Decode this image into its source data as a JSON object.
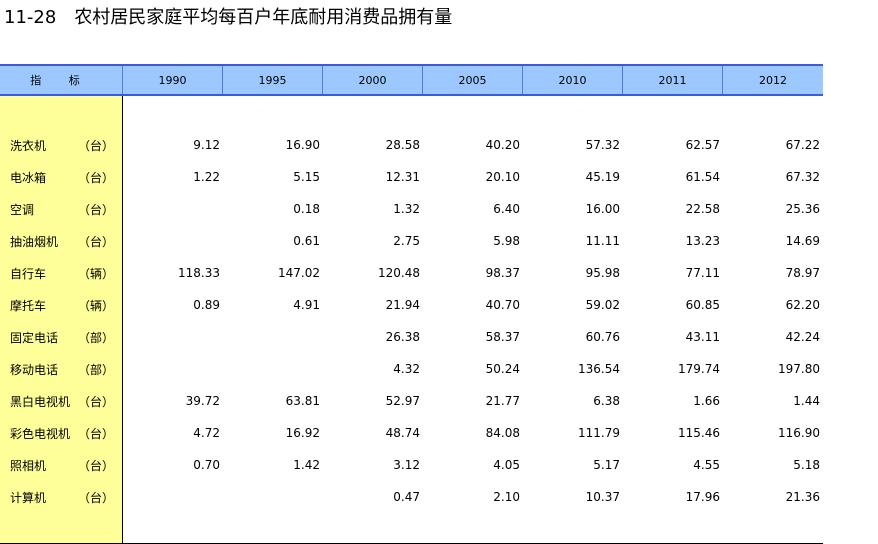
{
  "title": {
    "number": "11-28",
    "text": "农村居民家庭平均每百户年底耐用消费品拥有量"
  },
  "header": {
    "indicator": "指 标",
    "years": [
      "1990",
      "1995",
      "2000",
      "2005",
      "2010",
      "2011",
      "2012"
    ]
  },
  "rows": [
    {
      "name": "洗衣机",
      "unit": "（台）",
      "values": [
        "9.12",
        "16.90",
        "28.58",
        "40.20",
        "57.32",
        "62.57",
        "67.22"
      ]
    },
    {
      "name": "电冰箱",
      "unit": "（台）",
      "values": [
        "1.22",
        "5.15",
        "12.31",
        "20.10",
        "45.19",
        "61.54",
        "67.32"
      ]
    },
    {
      "name": "空调",
      "unit": "（台）",
      "values": [
        "",
        "0.18",
        "1.32",
        "6.40",
        "16.00",
        "22.58",
        "25.36"
      ]
    },
    {
      "name": "抽油烟机",
      "unit": "（台）",
      "values": [
        "",
        "0.61",
        "2.75",
        "5.98",
        "11.11",
        "13.23",
        "14.69"
      ]
    },
    {
      "name": "自行车",
      "unit": "（辆）",
      "values": [
        "118.33",
        "147.02",
        "120.48",
        "98.37",
        "95.98",
        "77.11",
        "78.97"
      ]
    },
    {
      "name": "摩托车",
      "unit": "（辆）",
      "values": [
        "0.89",
        "4.91",
        "21.94",
        "40.70",
        "59.02",
        "60.85",
        "62.20"
      ]
    },
    {
      "name": "固定电话",
      "unit": "（部）",
      "values": [
        "",
        "",
        "26.38",
        "58.37",
        "60.76",
        "43.11",
        "42.24"
      ]
    },
    {
      "name": "移动电话",
      "unit": "（部）",
      "values": [
        "",
        "",
        "4.32",
        "50.24",
        "136.54",
        "179.74",
        "197.80"
      ]
    },
    {
      "name": "黑白电视机",
      "unit": "（台）",
      "values": [
        "39.72",
        "63.81",
        "52.97",
        "21.77",
        "6.38",
        "1.66",
        "1.44"
      ]
    },
    {
      "name": "彩色电视机",
      "unit": "（台）",
      "values": [
        "4.72",
        "16.92",
        "48.74",
        "84.08",
        "111.79",
        "115.46",
        "116.90"
      ]
    },
    {
      "name": "照相机",
      "unit": "（台）",
      "values": [
        "0.70",
        "1.42",
        "3.12",
        "4.05",
        "5.17",
        "4.55",
        "5.18"
      ]
    },
    {
      "name": "计算机",
      "unit": "（台）",
      "values": [
        "",
        "",
        "0.47",
        "2.10",
        "10.37",
        "17.96",
        "21.36"
      ]
    }
  ]
}
